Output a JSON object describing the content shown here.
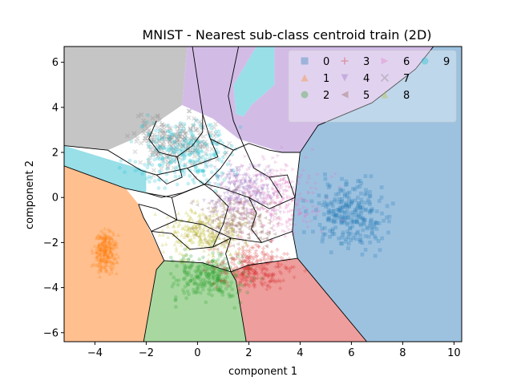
{
  "chart_data": {
    "type": "scatter",
    "title": "MNIST - Nearest sub-class centroid train (2D)",
    "xlabel": "component 1",
    "ylabel": "component 2",
    "xlim": [
      -5.2,
      10.3
    ],
    "ylim": [
      -6.4,
      6.7
    ],
    "xticks": [
      -4,
      -2,
      0,
      2,
      4,
      6,
      8,
      10
    ],
    "yticks": [
      -6,
      -4,
      -2,
      0,
      2,
      4,
      6
    ],
    "grid": false,
    "legend_position": "top-right",
    "legend_columns": 4,
    "series": [
      {
        "name": "0",
        "marker": "square",
        "color": "#1f77b4",
        "center": [
          6.0,
          -0.8
        ],
        "spread": [
          1.2,
          1.2
        ]
      },
      {
        "name": "1",
        "marker": "triangle-up",
        "color": "#ff7f0e",
        "center": [
          -3.6,
          -2.4
        ],
        "spread": [
          0.35,
          0.8
        ]
      },
      {
        "name": "2",
        "marker": "circle",
        "color": "#2ca02c",
        "center": [
          0.5,
          -3.5
        ],
        "spread": [
          1.3,
          0.9
        ]
      },
      {
        "name": "3",
        "marker": "plus",
        "color": "#d62728",
        "center": [
          2.2,
          -3.1
        ],
        "spread": [
          1.2,
          0.8
        ]
      },
      {
        "name": "4",
        "marker": "triangle-down",
        "color": "#9467bd",
        "center": [
          1.8,
          0.4
        ],
        "spread": [
          1.2,
          1.0
        ]
      },
      {
        "name": "5",
        "marker": "triangle-left",
        "color": "#8c564b",
        "center": [
          1.5,
          -1.0
        ],
        "spread": [
          1.4,
          1.0
        ]
      },
      {
        "name": "6",
        "marker": "triangle-right",
        "color": "#e377c2",
        "center": [
          3.2,
          0.0
        ],
        "spread": [
          1.4,
          1.4
        ]
      },
      {
        "name": "7",
        "marker": "x",
        "color": "#7f7f7f",
        "center": [
          -0.8,
          2.5
        ],
        "spread": [
          1.4,
          1.0
        ]
      },
      {
        "name": "8",
        "marker": "triangle-up",
        "color": "#bcbd22",
        "center": [
          0.2,
          -1.6
        ],
        "spread": [
          1.2,
          0.9
        ]
      },
      {
        "name": "9",
        "marker": "circle",
        "color": "#17becf",
        "center": [
          -0.5,
          2.0
        ],
        "spread": [
          1.6,
          1.2
        ]
      }
    ],
    "regions": [
      {
        "label": "0",
        "color": "#9dc2e0",
        "polygon": [
          [
            10.3,
            6.7
          ],
          [
            10.3,
            -6.4
          ],
          [
            6.6,
            -6.4
          ],
          [
            3.9,
            -2.7
          ],
          [
            3.7,
            -1.5
          ],
          [
            3.8,
            0.0
          ],
          [
            4.0,
            2.0
          ],
          [
            4.7,
            3.2
          ],
          [
            6.8,
            4.2
          ],
          [
            8.5,
            5.7
          ],
          [
            9.2,
            6.7
          ]
        ]
      },
      {
        "label": "9",
        "color": "#98dfe8",
        "polygon": [
          [
            -5.2,
            2.3
          ],
          [
            -5.2,
            1.4
          ],
          [
            -2.8,
            0.4
          ],
          [
            -2.0,
            0.2
          ],
          [
            -2.0,
            1.2
          ],
          [
            -3.2,
            1.6
          ]
        ]
      },
      {
        "label": "9",
        "color": "#98dfe8",
        "polygon": [
          [
            2.3,
            6.7
          ],
          [
            3.0,
            6.7
          ],
          [
            3.0,
            5.0
          ],
          [
            2.1,
            4.1
          ],
          [
            1.8,
            3.6
          ],
          [
            1.5,
            3.7
          ],
          [
            1.4,
            5.0
          ]
        ]
      },
      {
        "label": "7",
        "color": "#c5c5c5",
        "polygon": [
          [
            -5.2,
            6.7
          ],
          [
            -0.4,
            6.7
          ],
          [
            -0.6,
            4.1
          ],
          [
            -1.5,
            3.4
          ],
          [
            -2.5,
            2.6
          ],
          [
            -3.5,
            2.1
          ],
          [
            -5.2,
            2.3
          ]
        ]
      },
      {
        "label": "1",
        "color": "#ffbf8f",
        "polygon": [
          [
            -5.2,
            1.4
          ],
          [
            -5.2,
            -6.4
          ],
          [
            -2.1,
            -6.4
          ],
          [
            -1.6,
            -3.2
          ],
          [
            -1.3,
            -2.8
          ],
          [
            -2.1,
            -0.9
          ],
          [
            -2.3,
            -0.3
          ],
          [
            -2.8,
            0.4
          ]
        ]
      },
      {
        "label": "2",
        "color": "#a8d8a0",
        "polygon": [
          [
            -2.1,
            -6.4
          ],
          [
            1.9,
            -6.4
          ],
          [
            1.5,
            -3.7
          ],
          [
            1.3,
            -3.3
          ],
          [
            0.2,
            -2.9
          ],
          [
            -1.3,
            -2.8
          ],
          [
            -1.6,
            -3.2
          ]
        ]
      },
      {
        "label": "3",
        "color": "#ee9e9c",
        "polygon": [
          [
            1.9,
            -6.4
          ],
          [
            6.6,
            -6.4
          ],
          [
            3.9,
            -2.7
          ],
          [
            2.0,
            -3.0
          ],
          [
            1.3,
            -3.3
          ],
          [
            1.5,
            -3.7
          ]
        ]
      },
      {
        "label": "4",
        "color": "#d2bce6",
        "polygon": [
          [
            -0.4,
            6.7
          ],
          [
            2.3,
            6.7
          ],
          [
            1.4,
            5.0
          ],
          [
            1.5,
            3.7
          ],
          [
            1.8,
            3.6
          ],
          [
            2.1,
            4.1
          ],
          [
            3.0,
            5.0
          ],
          [
            3.0,
            6.7
          ],
          [
            9.2,
            6.7
          ],
          [
            8.5,
            5.7
          ],
          [
            6.8,
            4.2
          ],
          [
            4.7,
            3.2
          ],
          [
            4.0,
            2.0
          ],
          [
            3.3,
            2.0
          ],
          [
            1.6,
            2.6
          ],
          [
            0.6,
            3.5
          ],
          [
            -0.6,
            4.1
          ]
        ]
      }
    ],
    "boundaries": [
      [
        [
          -0.2,
          6.7
        ],
        [
          0.2,
          3.7
        ],
        [
          0.5,
          2.6
        ],
        [
          0.8,
          1.8
        ]
      ],
      [
        [
          1.6,
          6.7
        ],
        [
          1.2,
          4.5
        ],
        [
          1.4,
          3.4
        ],
        [
          1.8,
          2.3
        ]
      ],
      [
        [
          -5.2,
          2.3
        ],
        [
          -3.5,
          2.1
        ],
        [
          -2.2,
          1.2
        ],
        [
          -1.6,
          1.0
        ],
        [
          -0.4,
          1.3
        ],
        [
          0.8,
          1.8
        ]
      ],
      [
        [
          -5.2,
          1.4
        ],
        [
          -2.8,
          0.4
        ],
        [
          -2.0,
          0.2
        ],
        [
          -1.0,
          0.0
        ],
        [
          0.3,
          0.6
        ]
      ],
      [
        [
          -2.1,
          -6.4
        ],
        [
          -1.6,
          -3.2
        ],
        [
          -1.3,
          -2.8
        ],
        [
          -1.8,
          -1.5
        ],
        [
          -2.1,
          -0.9
        ],
        [
          -2.3,
          -0.3
        ]
      ],
      [
        [
          1.9,
          -6.4
        ],
        [
          1.5,
          -3.7
        ],
        [
          1.3,
          -3.3
        ],
        [
          1.1,
          -2.5
        ],
        [
          1.3,
          -1.8
        ]
      ],
      [
        [
          6.6,
          -6.4
        ],
        [
          3.9,
          -2.7
        ],
        [
          3.7,
          -1.5
        ],
        [
          3.8,
          0.0
        ],
        [
          4.0,
          2.0
        ],
        [
          4.7,
          3.2
        ],
        [
          6.8,
          4.2
        ],
        [
          8.5,
          5.7
        ],
        [
          9.2,
          6.7
        ]
      ],
      [
        [
          -1.3,
          -2.8
        ],
        [
          0.2,
          -2.9
        ],
        [
          1.3,
          -3.3
        ],
        [
          2.0,
          -3.0
        ],
        [
          3.9,
          -2.7
        ]
      ],
      [
        [
          -2.3,
          -0.3
        ],
        [
          -1.6,
          -0.5
        ],
        [
          -0.8,
          -1.0
        ],
        [
          0.2,
          -1.2
        ],
        [
          1.3,
          -1.8
        ],
        [
          2.5,
          -2.0
        ],
        [
          3.7,
          -1.5
        ]
      ],
      [
        [
          -2.0,
          0.2
        ],
        [
          -1.4,
          0.0
        ],
        [
          -0.6,
          0.2
        ],
        [
          0.3,
          0.6
        ],
        [
          1.0,
          0.4
        ],
        [
          2.0,
          0.0
        ],
        [
          2.8,
          -0.5
        ],
        [
          3.8,
          0.0
        ]
      ],
      [
        [
          -1.6,
          3.4
        ],
        [
          -1.9,
          2.6
        ],
        [
          -1.5,
          2.0
        ],
        [
          -0.8,
          1.8
        ],
        [
          -0.2,
          2.3
        ],
        [
          0.2,
          2.9
        ],
        [
          0.2,
          3.7
        ]
      ],
      [
        [
          -0.8,
          1.8
        ],
        [
          -0.6,
          0.9
        ],
        [
          -1.2,
          0.6
        ],
        [
          -1.6,
          1.0
        ]
      ],
      [
        [
          0.5,
          2.6
        ],
        [
          1.4,
          2.1
        ],
        [
          2.0,
          2.4
        ],
        [
          2.8,
          2.1
        ],
        [
          3.3,
          2.0
        ],
        [
          4.0,
          2.0
        ]
      ],
      [
        [
          1.8,
          2.3
        ],
        [
          2.2,
          1.3
        ],
        [
          2.8,
          0.9
        ],
        [
          3.3,
          0.0
        ]
      ],
      [
        [
          -0.4,
          1.3
        ],
        [
          0.0,
          0.8
        ],
        [
          0.6,
          0.3
        ],
        [
          1.2,
          -0.4
        ],
        [
          1.0,
          -1.2
        ],
        [
          0.6,
          -2.2
        ]
      ],
      [
        [
          -1.8,
          -1.5
        ],
        [
          -1.0,
          -1.6
        ],
        [
          -0.3,
          -2.3
        ],
        [
          0.6,
          -2.2
        ],
        [
          1.3,
          -1.8
        ]
      ],
      [
        [
          2.0,
          0.0
        ],
        [
          2.3,
          -0.7
        ],
        [
          2.1,
          -1.4
        ],
        [
          2.5,
          -2.0
        ]
      ],
      [
        [
          -1.0,
          0.0
        ],
        [
          -0.8,
          -1.0
        ],
        [
          -1.4,
          -1.3
        ],
        [
          -1.8,
          -1.5
        ]
      ],
      [
        [
          0.3,
          0.6
        ],
        [
          0.9,
          1.3
        ],
        [
          1.4,
          2.1
        ]
      ],
      [
        [
          2.8,
          0.9
        ],
        [
          3.5,
          1.0
        ],
        [
          3.8,
          0.0
        ]
      ]
    ]
  }
}
